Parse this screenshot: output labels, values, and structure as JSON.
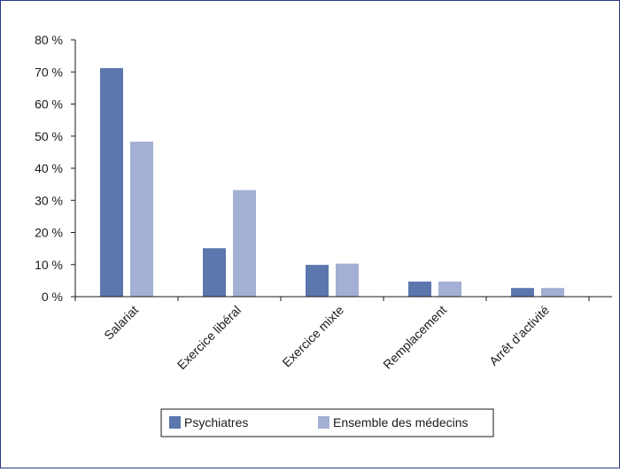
{
  "chart_data": {
    "type": "bar",
    "title": "",
    "xlabel": "",
    "ylabel": "",
    "categories": [
      "Salariat",
      "Exercice libéral",
      "Exercice mixte",
      "Remplacement",
      "Arrêt d’activité"
    ],
    "series": [
      {
        "name": "Psychiatres",
        "color": "#5b77ad",
        "values": [
          71.2,
          15.1,
          9.9,
          4.7,
          2.7
        ]
      },
      {
        "name": "Ensemble des médecins",
        "color": "#a3afd4",
        "values": [
          48.3,
          33.2,
          10.3,
          4.7,
          2.7
        ]
      }
    ],
    "ylim": [
      0,
      80
    ],
    "yticks": [
      0,
      10,
      20,
      30,
      40,
      50,
      60,
      70,
      80
    ],
    "ytick_labels": [
      "0 %",
      "10 %",
      "20 %",
      "30 %",
      "40 %",
      "50 %",
      "60 %",
      "70 %",
      "80 %"
    ],
    "grid": false,
    "legend_position": "bottom-center"
  }
}
